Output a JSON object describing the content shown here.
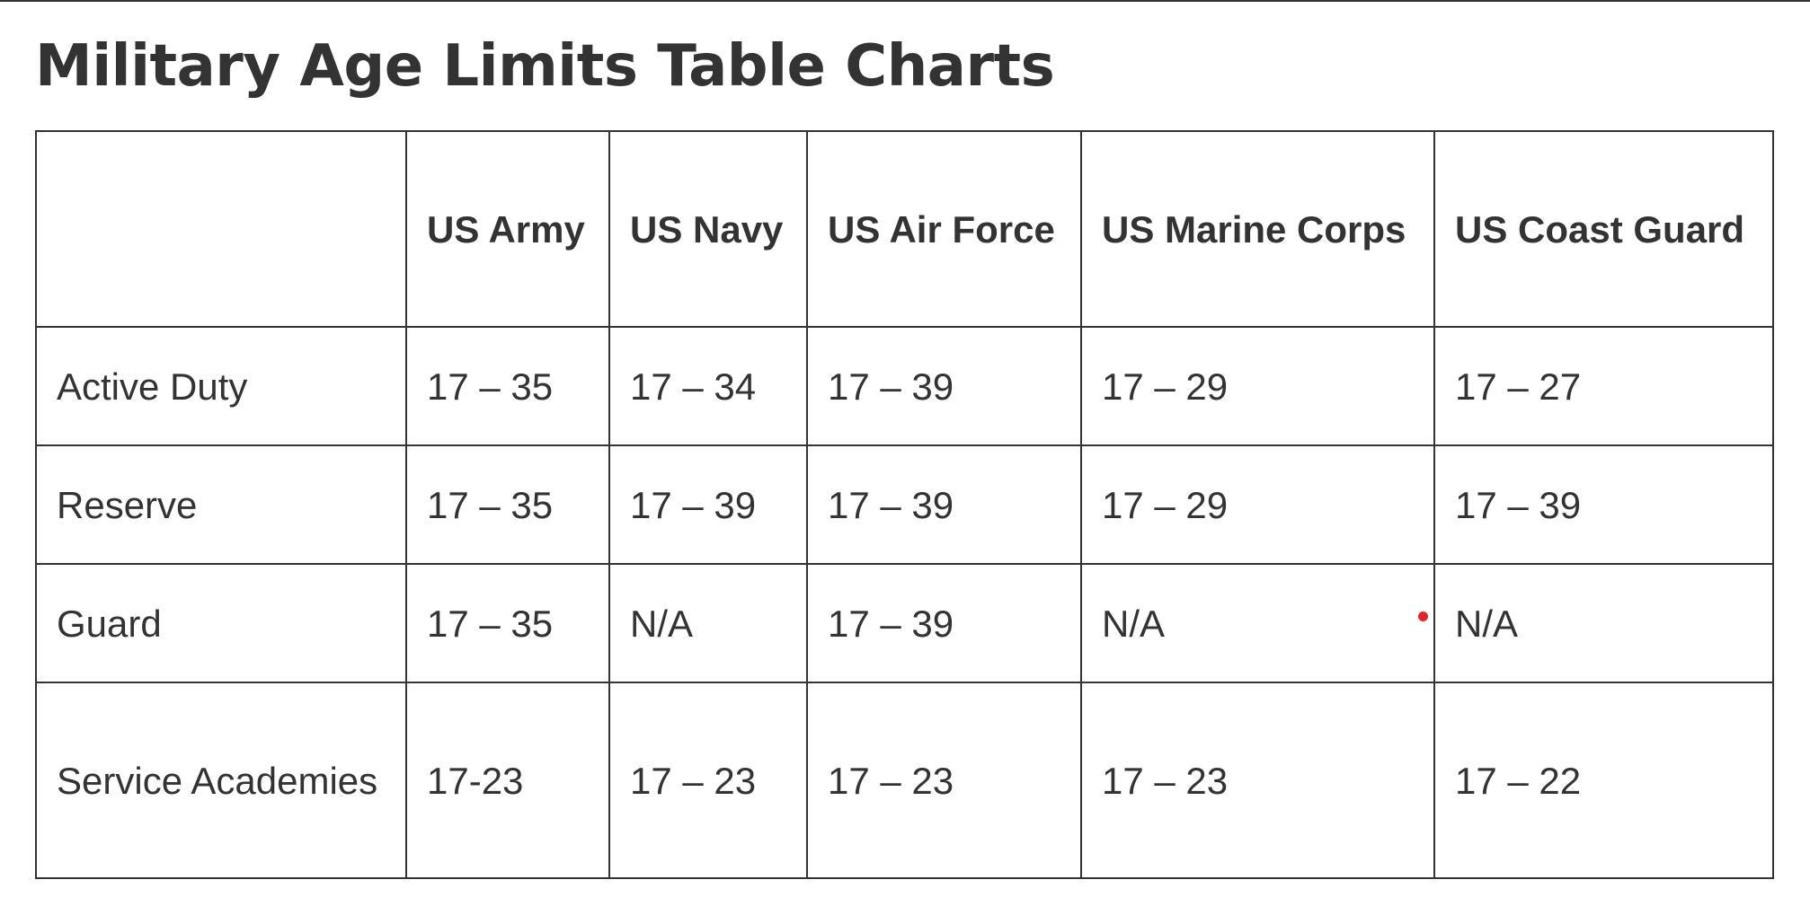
{
  "title": "Military Age Limits Table Charts",
  "table": {
    "headers": [
      "",
      "US Army",
      "US Navy",
      "US Air Force",
      "US Marine Corps",
      "US Coast Guard"
    ],
    "rows": [
      {
        "label": "Active Duty",
        "values": [
          "17 – 35",
          "17 – 34",
          "17 – 39",
          "17 – 29",
          "17 – 27"
        ]
      },
      {
        "label": "Reserve",
        "values": [
          "17 – 35",
          "17 – 39",
          "17 – 39",
          "17 – 29",
          "17 – 39"
        ]
      },
      {
        "label": "Guard",
        "values": [
          "17 – 35",
          "N/A",
          "17 – 39",
          "N/A",
          "N/A"
        ]
      },
      {
        "label": "Service Academies",
        "values": [
          "17-23",
          "17 – 23",
          "17 – 23",
          "17 – 23",
          "17 – 22"
        ]
      }
    ]
  },
  "colors": {
    "text": "#333333",
    "border": "#333333",
    "marker": "#e0262a"
  }
}
